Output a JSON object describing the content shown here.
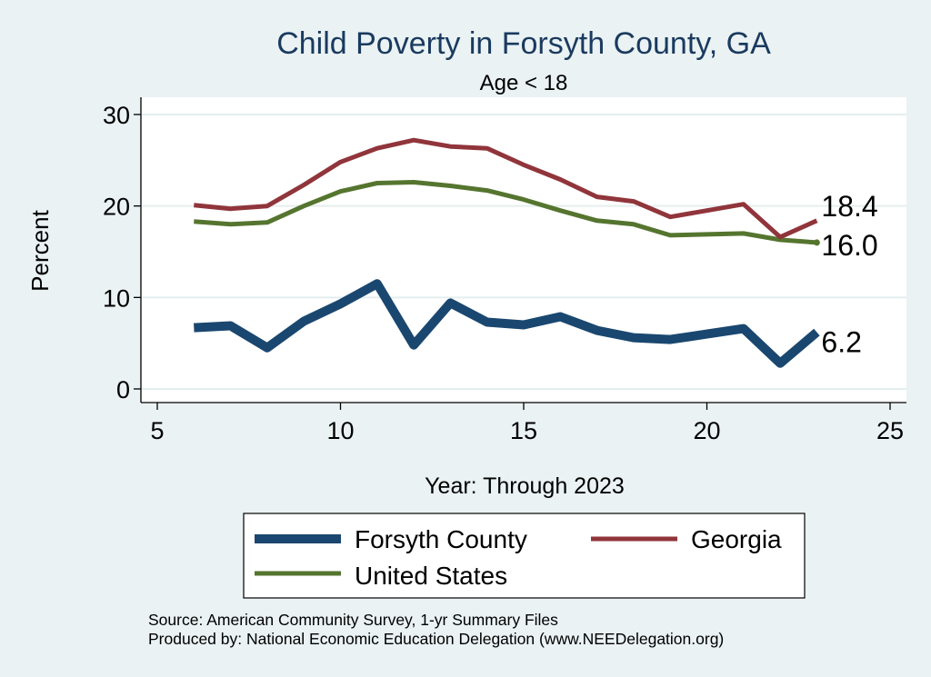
{
  "chart_data": {
    "type": "line",
    "title": "Child Poverty in Forsyth County, GA",
    "subtitle": "Age < 18",
    "xlabel": "Year: Through 2023",
    "ylabel": "Percent",
    "xlim": [
      5,
      25
    ],
    "ylim": [
      0,
      30
    ],
    "xticks": [
      5,
      10,
      15,
      20,
      25
    ],
    "yticks": [
      0,
      10,
      20,
      30
    ],
    "grid": true,
    "legend_position": "bottom",
    "x": [
      6,
      7,
      8,
      9,
      10,
      11,
      12,
      13,
      14,
      15,
      16,
      17,
      18,
      19,
      20,
      21,
      22,
      23
    ],
    "series": [
      {
        "name": "Forsyth County",
        "color": "#1a476f",
        "width": "thick",
        "values": [
          6.7,
          6.9,
          4.5,
          7.4,
          9.3,
          11.5,
          4.8,
          9.4,
          7.3,
          7.0,
          7.9,
          6.4,
          5.6,
          5.4,
          6.0,
          6.6,
          2.8,
          6.2
        ],
        "end_label": "6.2"
      },
      {
        "name": "Georgia",
        "color": "#90353b",
        "width": "medium",
        "values": [
          20.1,
          19.7,
          20.0,
          22.3,
          24.8,
          26.3,
          27.2,
          26.5,
          26.3,
          24.5,
          22.9,
          21.0,
          20.5,
          18.8,
          19.5,
          20.2,
          16.6,
          18.4
        ],
        "end_label": "18.4"
      },
      {
        "name": "United States",
        "color": "#55752f",
        "width": "medium",
        "values": [
          18.3,
          18.0,
          18.2,
          20.0,
          21.6,
          22.5,
          22.6,
          22.2,
          21.7,
          20.7,
          19.5,
          18.4,
          18.0,
          16.8,
          16.9,
          17.0,
          16.3,
          16.0
        ],
        "end_label": "16.0"
      }
    ]
  },
  "source": {
    "line1": "Source: American Community Survey, 1-yr Summary Files",
    "line2": "Produced by: National Economic Education Delegation (www.NEEDelegation.org)"
  }
}
